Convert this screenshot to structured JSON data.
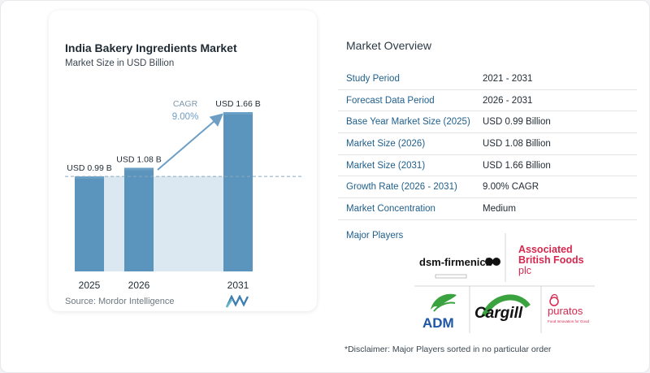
{
  "chart": {
    "title": "India Bakery Ingredients Market",
    "subtitle": "Market Size in USD Billion",
    "source": "Source:  Mordor Intelligence",
    "cagr_label": "CAGR",
    "cagr_value": "9.00%"
  },
  "chart_data": {
    "type": "bar",
    "title": "India Bakery Ingredients Market",
    "subtitle": "Market Size in USD Billion",
    "categories": [
      "2025",
      "2026",
      "2031"
    ],
    "values": [
      0.99,
      1.08,
      1.66
    ],
    "value_labels": [
      "USD 0.99 B",
      "USD 1.08 B",
      "USD 1.66 B"
    ],
    "annotation": {
      "label": "CAGR",
      "value": "9.00%"
    },
    "ylim": [
      0,
      1.66
    ],
    "grid": false,
    "colors": {
      "bar": "#5b94bc",
      "bar_top": "#6a9fc5",
      "band": "#dbe8f1",
      "arrow": "#6e9ec4",
      "dashed": "#8aa9bf"
    }
  },
  "overview": {
    "title": "Market Overview",
    "rows": [
      {
        "label": "Study Period",
        "value": "2021 - 2031"
      },
      {
        "label": "Forecast Data Period",
        "value": "2026 - 2031"
      },
      {
        "label": "Base Year Market Size (2025)",
        "value": "USD 0.99 Billion"
      },
      {
        "label": "Market Size (2026)",
        "value": "USD 1.08 Billion"
      },
      {
        "label": "Market Size (2031)",
        "value": "USD 1.66 Billion"
      },
      {
        "label": "Growth Rate (2026 - 2031)",
        "value": "9.00% CAGR"
      },
      {
        "label": "Market Concentration",
        "value": "Medium"
      }
    ],
    "players_label": "Major Players",
    "players": [
      "dsm-firmenich",
      "Associated British Foods plc",
      "ADM",
      "Cargill",
      "puratos"
    ],
    "player_logo_text": {
      "dsm": "dsm-firmenich",
      "abf_line1": "Associated",
      "abf_line2": "British Foods",
      "abf_line3": "plc",
      "adm": "ADM",
      "cargill": "Cargill",
      "puratos": "puratos",
      "puratos_tag": "Food Innovation for Good"
    },
    "disclaimer": "*Disclaimer: Major Players sorted in no particular order"
  }
}
